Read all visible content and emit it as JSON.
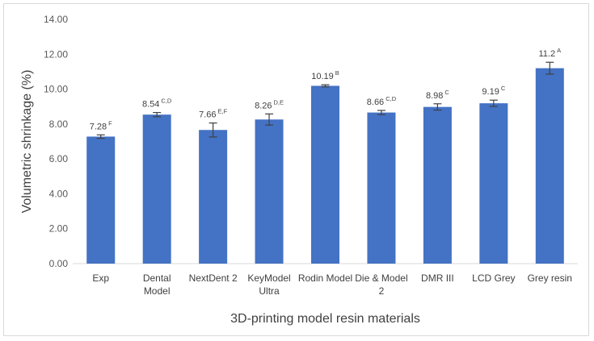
{
  "chart_data": {
    "type": "bar",
    "title": "",
    "xlabel": "3D-printing model resin materials",
    "ylabel": "Volumetric shrinkage (%)",
    "ylim": [
      0,
      14
    ],
    "yticks": [
      "0.00",
      "2.00",
      "4.00",
      "6.00",
      "8.00",
      "10.00",
      "12.00",
      "14.00"
    ],
    "grid": false,
    "bar_color": "#4472c4",
    "categories": [
      [
        "Exp"
      ],
      [
        "Dental",
        "Model"
      ],
      [
        "NextDent 2"
      ],
      [
        "KeyModel",
        "Ultra"
      ],
      [
        "Rodin Model"
      ],
      [
        "Die & Model",
        "2"
      ],
      [
        "DMR III"
      ],
      [
        "LCD Grey"
      ],
      [
        "Grey resin"
      ]
    ],
    "values": [
      7.28,
      8.54,
      7.66,
      8.26,
      10.19,
      8.66,
      8.98,
      9.19,
      11.2
    ],
    "value_labels": [
      "7.28",
      "8.54",
      "7.66",
      "8.26",
      "10.19",
      "8.66",
      "8.98",
      "9.19",
      "11.2"
    ],
    "error": [
      0.1,
      0.12,
      0.4,
      0.32,
      0.06,
      0.12,
      0.18,
      0.18,
      0.34
    ],
    "groups": [
      "F",
      "C,D",
      "E,F",
      "D,E",
      "B",
      "C,D",
      "C",
      "C",
      "A"
    ]
  }
}
